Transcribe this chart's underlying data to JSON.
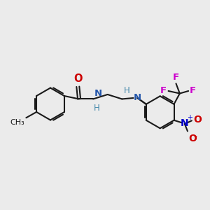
{
  "bg_color": "#ebebeb",
  "bond_color": "#1a1a1a",
  "O_color": "#cc0000",
  "N_color": "#2255aa",
  "NH_color": "#4488aa",
  "F_color": "#cc00cc",
  "NO2_N_color": "#0000cc",
  "NO2_O_color": "#cc0000",
  "figsize": [
    3.0,
    3.0
  ],
  "dpi": 100,
  "xlim": [
    0,
    10
  ],
  "ylim": [
    0,
    10
  ]
}
